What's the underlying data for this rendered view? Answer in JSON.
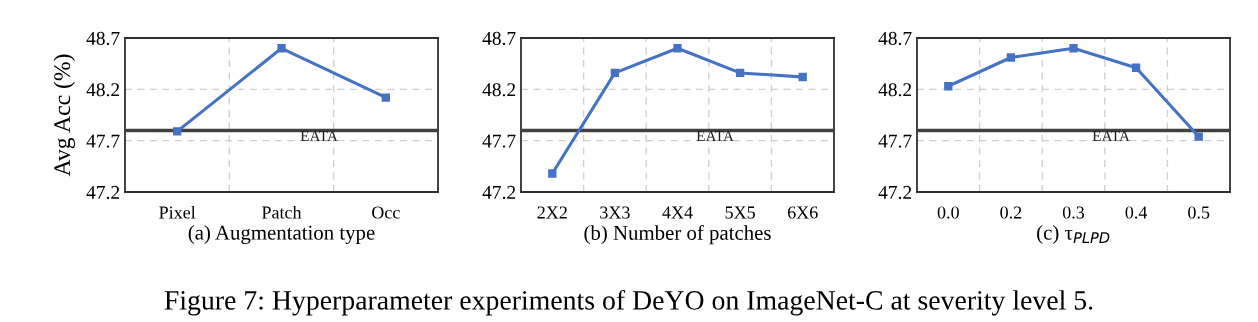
{
  "chart_data": [
    {
      "type": "line",
      "categories": [
        "Pixel",
        "Patch",
        "Occ"
      ],
      "xlabel": "(a) Augmentation type",
      "ylabel": "Avg Acc (%)",
      "series": [
        {
          "color": "#4472c4",
          "values": [
            47.79,
            48.6,
            48.12
          ]
        }
      ],
      "ylim": [
        47.2,
        48.7
      ],
      "yticks": [
        47.2,
        47.7,
        48.2,
        48.7
      ],
      "grid": true,
      "marker": "square",
      "line_style": "solid",
      "ref_lines": [
        {
          "axis": "y",
          "value": 47.8,
          "label": "EATA",
          "color": "#404040"
        }
      ],
      "annotations": [
        "Figure 7: Hyperparameter experiments of DeYO on ImageNet-C at severity level 5."
      ]
    },
    {
      "type": "line",
      "categories": [
        "2X2",
        "3X3",
        "4X4",
        "5X5",
        "6X6"
      ],
      "xlabel": "(b) Number of patches",
      "series": [
        {
          "color": "#4472c4",
          "values": [
            47.38,
            48.36,
            48.6,
            48.36,
            48.32
          ]
        }
      ],
      "ylim": [
        47.2,
        48.7
      ],
      "yticks": [
        47.2,
        47.7,
        48.2,
        48.7
      ],
      "grid": true,
      "marker": "square",
      "line_style": "solid",
      "ref_lines": [
        {
          "axis": "y",
          "value": 47.8,
          "label": "EATA",
          "color": "#404040"
        }
      ]
    },
    {
      "type": "line",
      "categories": [
        "0.0",
        "0.2",
        "0.3",
        "0.4",
        "0.5"
      ],
      "xlabel": "(c) τ$_{PLPD}$",
      "series": [
        {
          "color": "#4472c4",
          "values": [
            48.23,
            48.51,
            48.6,
            48.41,
            47.74
          ]
        }
      ],
      "ylim": [
        47.2,
        48.7
      ],
      "yticks": [
        47.2,
        47.7,
        48.2,
        48.7
      ],
      "grid": true,
      "marker": "square",
      "line_style": "solid",
      "ref_lines": [
        {
          "axis": "y",
          "value": 47.8,
          "label": "EATA",
          "color": "#404040"
        }
      ]
    }
  ]
}
